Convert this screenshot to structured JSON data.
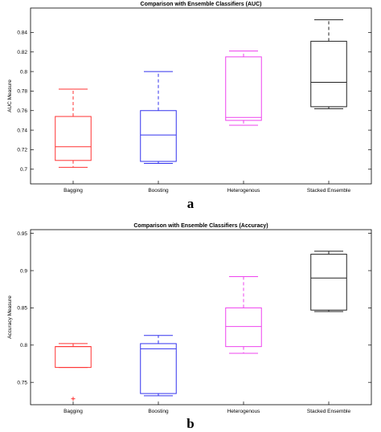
{
  "panels": [
    {
      "label": "a"
    },
    {
      "label": "b"
    }
  ],
  "chart_data": [
    {
      "type": "box",
      "title": "Comparison with Ensemble Classifiers (AUC)",
      "xlabel": "",
      "ylabel": "AUC Measure",
      "categories": [
        "Bagging",
        "Boosting",
        "Heterogenous",
        "Stacked Ensemble"
      ],
      "colors": [
        "#ff3333",
        "#3333ee",
        "#ee44ee",
        "#222222"
      ],
      "ylim": [
        0.685,
        0.865
      ],
      "yticks": [
        0.7,
        0.72,
        0.74,
        0.76,
        0.78,
        0.8,
        0.82,
        0.84
      ],
      "ytick_labels": [
        "0.7",
        "0.72",
        "0.74",
        "0.76",
        "0.78",
        "0.8",
        "0.82",
        "0.84"
      ],
      "grid": false,
      "boxes": [
        {
          "whisker_low": 0.702,
          "q1": 0.709,
          "median": 0.723,
          "q3": 0.754,
          "whisker_high": 0.782,
          "outliers": []
        },
        {
          "whisker_low": 0.706,
          "q1": 0.708,
          "median": 0.735,
          "q3": 0.76,
          "whisker_high": 0.8,
          "outliers": []
        },
        {
          "whisker_low": 0.745,
          "q1": 0.75,
          "median": 0.753,
          "q3": 0.815,
          "whisker_high": 0.821,
          "outliers": []
        },
        {
          "whisker_low": 0.762,
          "q1": 0.764,
          "median": 0.789,
          "q3": 0.831,
          "whisker_high": 0.853,
          "outliers": []
        }
      ]
    },
    {
      "type": "box",
      "title": "Comparison with Ensemble Classifiers (Accuracy)",
      "xlabel": "",
      "ylabel": "Accuracy Measure",
      "categories": [
        "Bagging",
        "Boosting",
        "Heterogenous",
        "Stacked Ensemble"
      ],
      "colors": [
        "#ff3333",
        "#3333ee",
        "#ee44ee",
        "#222222"
      ],
      "ylim": [
        0.72,
        0.955
      ],
      "yticks": [
        0.75,
        0.8,
        0.85,
        0.9,
        0.95
      ],
      "ytick_labels": [
        "0.75",
        "0.8",
        "0.85",
        "0.9",
        "0.95"
      ],
      "grid": false,
      "boxes": [
        {
          "whisker_low": 0.77,
          "q1": 0.77,
          "median": 0.798,
          "q3": 0.798,
          "whisker_high": 0.802,
          "outliers": [
            0.728
          ]
        },
        {
          "whisker_low": 0.732,
          "q1": 0.735,
          "median": 0.795,
          "q3": 0.802,
          "whisker_high": 0.813,
          "outliers": []
        },
        {
          "whisker_low": 0.789,
          "q1": 0.798,
          "median": 0.825,
          "q3": 0.85,
          "whisker_high": 0.892,
          "outliers": []
        },
        {
          "whisker_low": 0.845,
          "q1": 0.847,
          "median": 0.89,
          "q3": 0.922,
          "whisker_high": 0.926,
          "outliers": []
        }
      ]
    }
  ]
}
